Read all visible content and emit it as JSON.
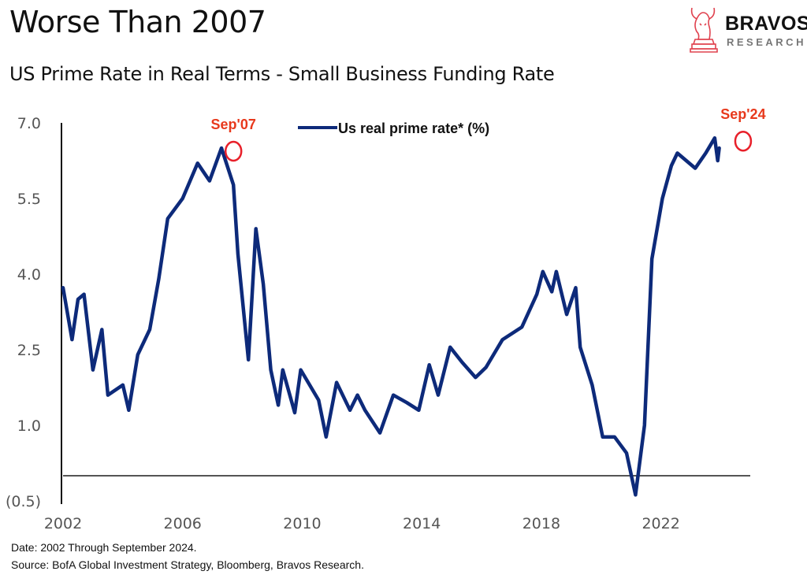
{
  "header": {
    "title": "Worse Than 2007",
    "subtitle": "US Prime Rate in Real Terms - Small Business Funding Rate"
  },
  "logo": {
    "word": "BRAVOS",
    "sub": "RESEARCH",
    "icon": "bull-chess-knight-icon",
    "accent": "#e0424f"
  },
  "footer": {
    "date_note": "Date: 2002 Through September 2024.",
    "source_note": "Source: BofA Global Investment Strategy, Bloomberg, Bravos Research."
  },
  "chart_data": {
    "type": "line",
    "title": "US Prime Rate in Real Terms - Small Business Funding Rate",
    "xlabel": "",
    "ylabel": "",
    "xlim": [
      2002,
      2025.2
    ],
    "ylim": [
      -0.5,
      7.0
    ],
    "y_ticks": [
      7.0,
      5.5,
      4.0,
      2.5,
      1.0,
      -0.5
    ],
    "y_tick_labels": [
      "7.0",
      "5.5",
      "4.0",
      "2.5",
      "1.0",
      "(0.5)"
    ],
    "x_ticks": [
      2002,
      2006,
      2010,
      2014,
      2018,
      2022
    ],
    "x_tick_labels": [
      "2002",
      "2006",
      "2010",
      "2014",
      "2018",
      "2022"
    ],
    "reference_line": 0,
    "grid": false,
    "legend": {
      "position": "top-center",
      "entries": [
        "Us real prime rate* (%)"
      ]
    },
    "colors": {
      "series": "#0d2a7a",
      "annotation": "#e8391c",
      "circle": "#e8202a",
      "axis": "#111111",
      "reference": "#555555",
      "tick_text": "#555555"
    },
    "annotations": [
      {
        "label": "Sep'07",
        "x": 2007.7,
        "y": 6.5
      },
      {
        "label": "Sep'24",
        "x": 2024.75,
        "y": 6.7
      }
    ],
    "series": [
      {
        "name": "Us real prime rate* (%)",
        "x": [
          2002.0,
          2002.3,
          2002.5,
          2002.7,
          2003.0,
          2003.3,
          2003.5,
          2004.0,
          2004.2,
          2004.5,
          2004.9,
          2005.2,
          2005.5,
          2006.0,
          2006.5,
          2006.9,
          2007.3,
          2007.7,
          2007.85,
          2008.2,
          2008.45,
          2008.7,
          2008.95,
          2009.2,
          2009.35,
          2009.75,
          2009.95,
          2010.55,
          2010.8,
          2011.15,
          2011.6,
          2011.85,
          2012.1,
          2012.6,
          2013.05,
          2013.5,
          2013.9,
          2014.25,
          2014.55,
          2014.95,
          2015.35,
          2015.8,
          2016.15,
          2016.7,
          2017.35,
          2017.85,
          2018.05,
          2018.35,
          2018.5,
          2018.85,
          2019.15,
          2019.3,
          2019.7,
          2020.05,
          2020.45,
          2020.85,
          2021.15,
          2021.45,
          2021.7,
          2022.05,
          2022.35,
          2022.55,
          2023.15,
          2023.5,
          2023.8,
          2023.9,
          2023.95
        ],
        "y": [
          3.73,
          2.7,
          3.5,
          3.6,
          2.1,
          2.9,
          1.6,
          1.8,
          1.3,
          2.4,
          2.9,
          3.9,
          5.1,
          5.5,
          6.2,
          5.85,
          6.5,
          5.77,
          4.4,
          2.3,
          4.9,
          3.8,
          2.1,
          1.4,
          2.1,
          1.25,
          2.1,
          1.5,
          0.77,
          1.85,
          1.3,
          1.6,
          1.3,
          0.85,
          1.6,
          1.45,
          1.3,
          2.2,
          1.6,
          2.55,
          2.25,
          1.95,
          2.15,
          2.7,
          2.95,
          3.6,
          4.05,
          3.65,
          4.05,
          3.2,
          3.73,
          2.55,
          1.8,
          0.77,
          0.77,
          0.45,
          -0.38,
          1.0,
          4.3,
          5.5,
          6.15,
          6.4,
          6.1,
          6.4,
          6.7,
          6.25,
          6.5
        ]
      }
    ]
  }
}
